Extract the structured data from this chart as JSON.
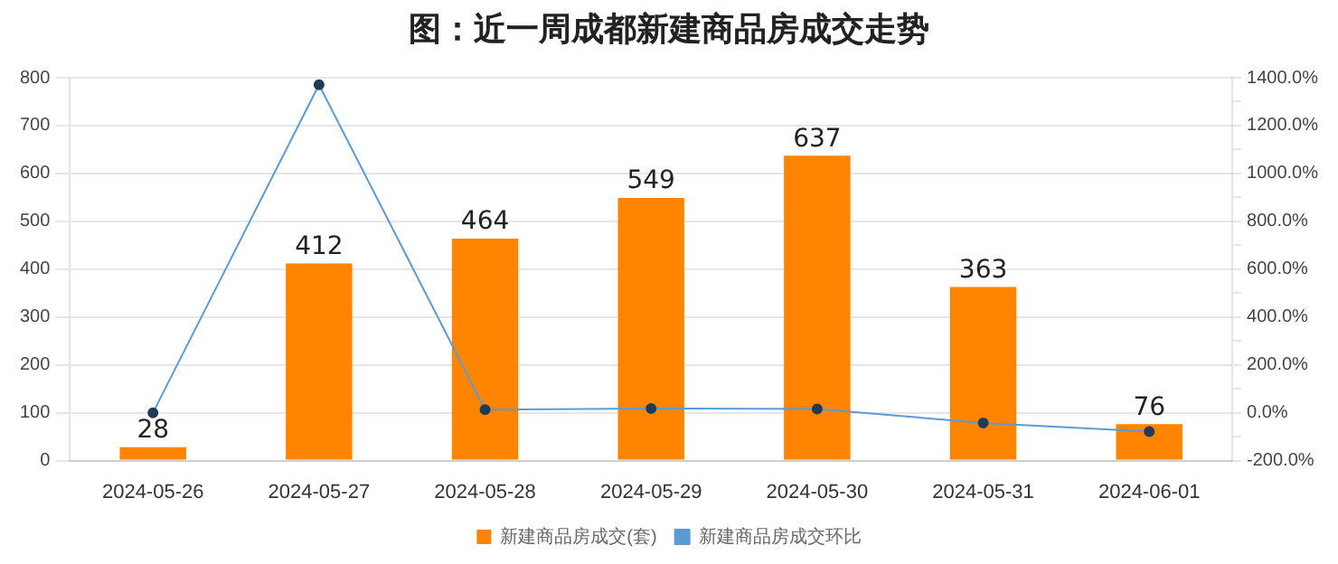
{
  "chart_data": {
    "type": "bar",
    "title": "图：近一周成都新建商品房成交走势",
    "categories": [
      "2024-05-26",
      "2024-05-27",
      "2024-05-28",
      "2024-05-29",
      "2024-05-30",
      "2024-05-31",
      "2024-06-01"
    ],
    "series": [
      {
        "name": "新建商品房成交(套)",
        "color": "#ff8400",
        "values": [
          28,
          412,
          464,
          549,
          637,
          363,
          76
        ]
      },
      {
        "name": "新建商品房成交环比",
        "type": "line",
        "axis": "y2",
        "color": "#5b9bd5",
        "values": [
          0,
          1371,
          13,
          18,
          16,
          -43,
          -79
        ]
      }
    ],
    "ylim": [
      0,
      800
    ],
    "yticks": [
      0,
      100,
      200,
      300,
      400,
      500,
      600,
      700,
      800
    ],
    "y2lim": [
      -200,
      1400
    ],
    "y2ticks": [
      {
        "value": -200,
        "label": "-200.0%"
      },
      {
        "value": -100,
        "label": null
      },
      {
        "value": 0,
        "label": "0.0%"
      },
      {
        "value": 100,
        "label": null
      },
      {
        "value": 200,
        "label": "200.0%"
      },
      {
        "value": 300,
        "label": null
      },
      {
        "value": 400,
        "label": "400.0%"
      },
      {
        "value": 500,
        "label": null
      },
      {
        "value": 600,
        "label": "600.0%"
      },
      {
        "value": 700,
        "label": null
      },
      {
        "value": 800,
        "label": "800.0%"
      },
      {
        "value": 900,
        "label": null
      },
      {
        "value": 1000,
        "label": "1000.0%"
      },
      {
        "value": 1100,
        "label": null
      },
      {
        "value": 1200,
        "label": "1200.0%"
      },
      {
        "value": 1300,
        "label": null
      },
      {
        "value": 1400,
        "label": "1400.0%"
      }
    ],
    "value_labels": [
      [
        "28",
        "412",
        "464",
        "549",
        "637",
        "363",
        "76"
      ],
      null
    ],
    "grid": "y",
    "legend": "bottom",
    "marker": "circle"
  }
}
